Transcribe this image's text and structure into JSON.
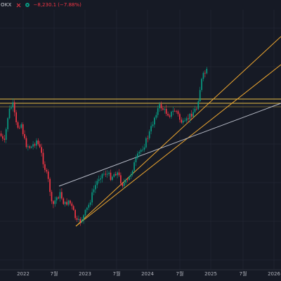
{
  "header": {
    "symbol": "OKX",
    "change": "−8,230.1 (−7.88%)",
    "colors": {
      "down": "#f23645",
      "up": "#089981"
    }
  },
  "chart_data": {
    "type": "candlestick",
    "x_tick_labels": [
      "2022",
      "7월",
      "2023",
      "7월",
      "2024",
      "7월",
      "2025",
      "7월",
      "2026"
    ],
    "grid": true,
    "colors": {
      "up": "#089981",
      "down": "#f23645",
      "trend_orange": "#f0a830",
      "trend_white": "#b8bcc8",
      "horizontal": "#e9c046",
      "background": "#161a25"
    },
    "annotations": [
      "ascending channel (orange parallel lines)",
      "diagonal support line (white)",
      "two horizontal resistance lines (yellow)"
    ]
  }
}
